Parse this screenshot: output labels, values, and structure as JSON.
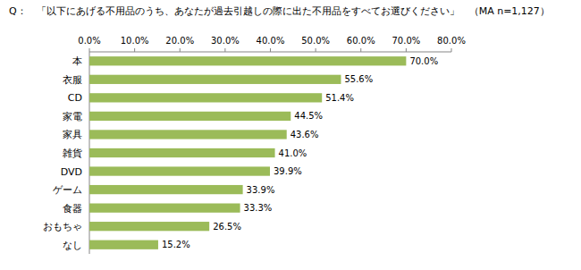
{
  "chart_data": {
    "type": "bar",
    "title": "Q：　「以下にあげる不用品のうち、あなたが過去引越しの際に出た不用品をすべてお選びください」　（MA n=1,127）",
    "orientation": "horizontal",
    "categories": [
      "本",
      "衣服",
      "CD",
      "家電",
      "家具",
      "雑貨",
      "DVD",
      "ゲーム",
      "食器",
      "おもちゃ",
      "なし"
    ],
    "values": [
      70.0,
      55.6,
      51.4,
      44.5,
      43.6,
      41.0,
      39.9,
      33.9,
      33.3,
      26.5,
      15.2
    ],
    "value_labels": [
      "70.0%",
      "55.6%",
      "51.4%",
      "44.5%",
      "43.6%",
      "41.0%",
      "39.9%",
      "33.9%",
      "33.3%",
      "26.5%",
      "15.2%"
    ],
    "color": "#9bbb59",
    "xlim": [
      0,
      80
    ],
    "xticks": [
      {
        "value": 0,
        "label": "0.0%"
      },
      {
        "value": 10,
        "label": "10.0%"
      },
      {
        "value": 20,
        "label": "20.0%"
      },
      {
        "value": 30,
        "label": "30.0%"
      },
      {
        "value": 40,
        "label": "40.0%"
      },
      {
        "value": 50,
        "label": "50.0%"
      },
      {
        "value": 60,
        "label": "60.0%"
      },
      {
        "value": 70,
        "label": "70.0%"
      },
      {
        "value": 80,
        "label": "80.0%"
      }
    ],
    "grid": false,
    "data_labels": true
  }
}
